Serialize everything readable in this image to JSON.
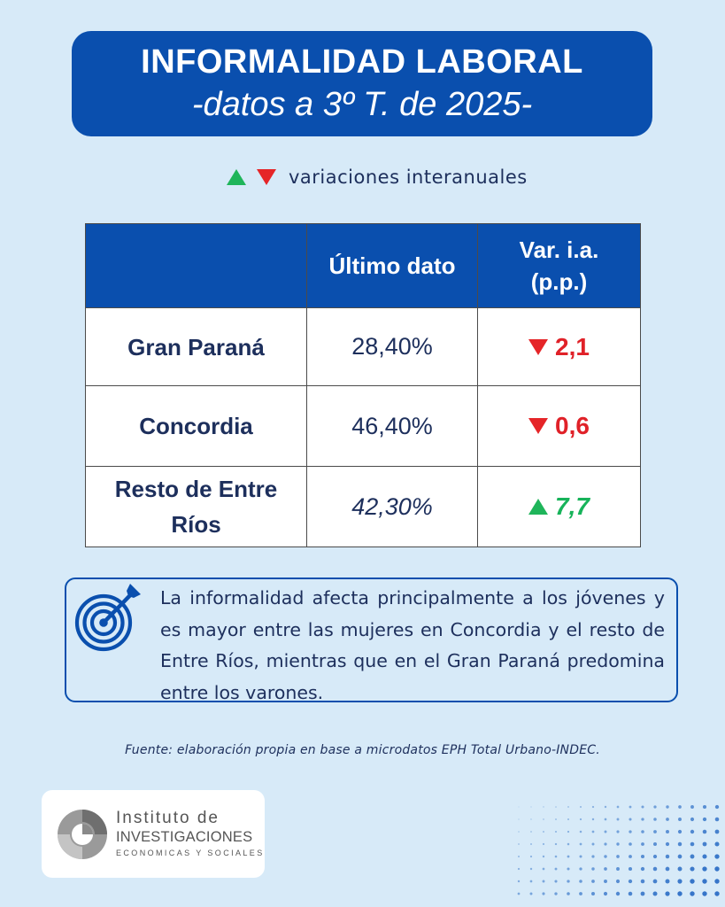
{
  "header": {
    "title": "INFORMALIDAD LABORAL",
    "subtitle": "-datos a 3º T. de 2025-"
  },
  "legend": {
    "text": "variaciones interanuales",
    "up_color": "#1fb55a",
    "down_color": "#e52528"
  },
  "table": {
    "headers": [
      "",
      "Último dato",
      "Var. i.a. (p.p.)"
    ],
    "header_var_line1": "Var. i.a.",
    "header_var_line2": "(p.p.)",
    "rows": [
      {
        "region": "Gran Paraná",
        "value": "28,40%",
        "direction": "down",
        "variation": "2,1"
      },
      {
        "region": "Concordia",
        "value": "46,40%",
        "direction": "down",
        "variation": "0,6"
      },
      {
        "region": "Resto de Entre Ríos",
        "region_line1": "Resto de Entre",
        "region_line2": "Ríos",
        "value": "42,30%",
        "direction": "up",
        "variation": "7,7"
      }
    ]
  },
  "highlight": {
    "icon": "target-icon",
    "text": "La informalidad afecta principalmente a los jóvenes y es mayor entre las mujeres en Concordia y el resto de Entre Ríos, mientras que en el Gran Paraná predomina entre los varones."
  },
  "source": "Fuente: elaboración propia en base a microdatos EPH Total Urbano-INDEC.",
  "logo": {
    "line1": "Instituto de",
    "line2": "INVESTIGACIONES",
    "line3": "ECONOMICAS Y SOCIALES"
  },
  "colors": {
    "background": "#d7eaf8",
    "brand_blue": "#0a4fae",
    "text_navy": "#1d2f5c",
    "negative_red": "#e02128",
    "positive_green": "#17b35a"
  }
}
